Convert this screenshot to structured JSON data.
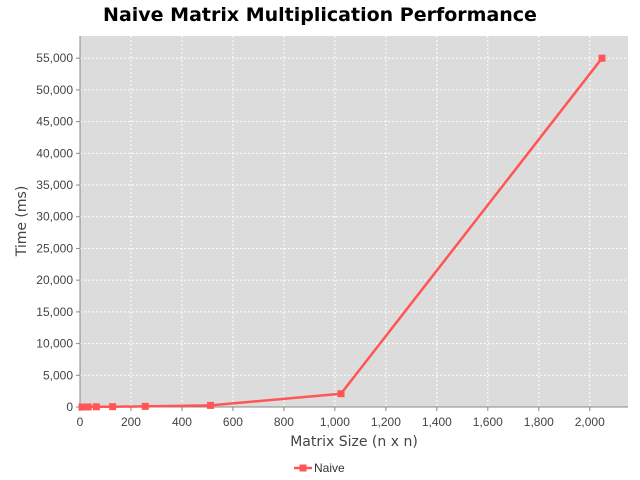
{
  "chart_data": {
    "type": "line",
    "title": "Naive Matrix Multiplication Performance",
    "xlabel": "Matrix Size (n x n)",
    "ylabel": "Time (ms)",
    "xlim": [
      0,
      2150
    ],
    "ylim": [
      0,
      58500
    ],
    "x_ticks": [
      0,
      200,
      400,
      600,
      800,
      1000,
      1200,
      1400,
      1600,
      1800,
      2000
    ],
    "x_tick_labels": [
      "0",
      "200",
      "400",
      "600",
      "800",
      "1,000",
      "1,200",
      "1,400",
      "1,600",
      "1,800",
      "2,000"
    ],
    "y_ticks": [
      0,
      5000,
      10000,
      15000,
      20000,
      25000,
      30000,
      35000,
      40000,
      45000,
      50000,
      55000
    ],
    "y_tick_labels": [
      "0",
      "5,000",
      "10,000",
      "15,000",
      "20,000",
      "25,000",
      "30,000",
      "35,000",
      "40,000",
      "45,000",
      "50,000",
      "55,000"
    ],
    "grid": true,
    "legend_position": "bottom",
    "series": [
      {
        "name": "Naive",
        "color": "#ff5555",
        "marker": "square",
        "x": [
          8,
          16,
          32,
          64,
          128,
          256,
          512,
          1024,
          2048
        ],
        "y": [
          0,
          0,
          5,
          30,
          50,
          100,
          250,
          2100,
          55000
        ]
      }
    ]
  }
}
